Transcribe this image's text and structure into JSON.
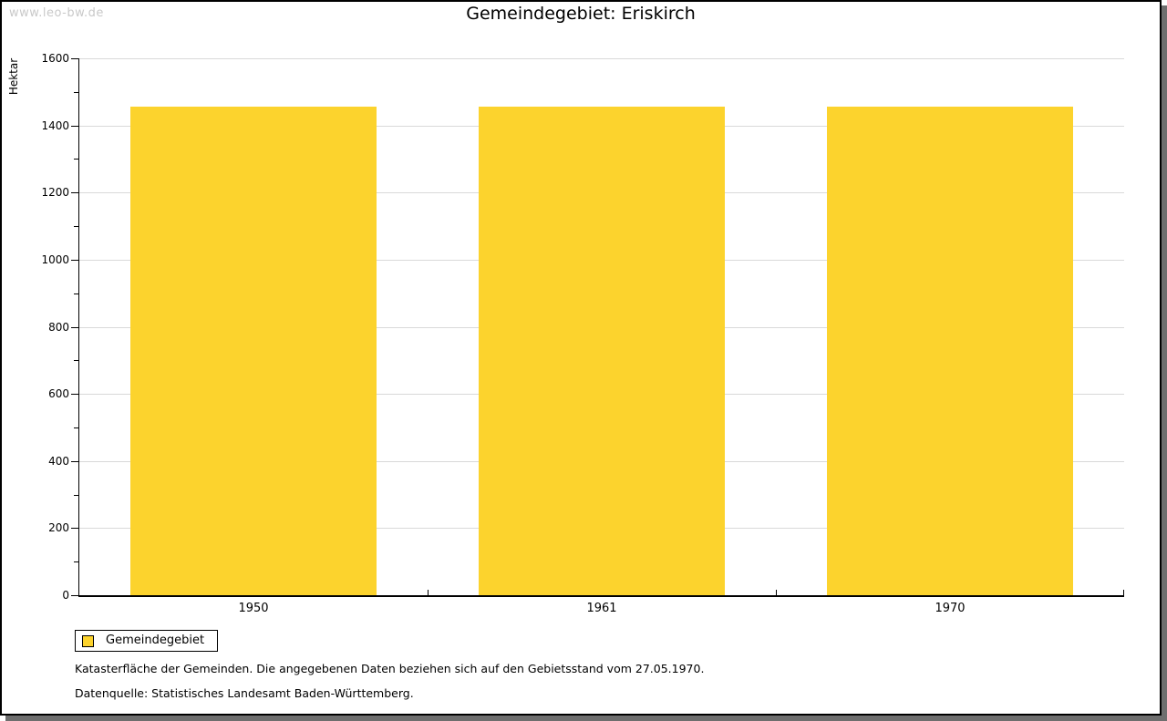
{
  "watermark": "www.leo-bw.de",
  "title": "Gemeindegebiet: Eriskirch",
  "chart_data": {
    "type": "bar",
    "title": "Gemeindegebiet: Eriskirch",
    "categories": [
      "1950",
      "1961",
      "1970"
    ],
    "series": [
      {
        "name": "Gemeindegebiet",
        "values": [
          1455,
          1455,
          1455
        ]
      }
    ],
    "xlabel": "",
    "ylabel": "Hektar",
    "ylim": [
      0,
      1600
    ],
    "ytick_step": 200,
    "ytick_minor_step": 100,
    "ytick_labels": [
      "0",
      "200",
      "400",
      "600",
      "800",
      "1000",
      "1200",
      "1400",
      "1600"
    ],
    "grid": true,
    "legend_position": "bottom-left",
    "unit": "Hektar"
  },
  "legend": {
    "label": "Gemeindegebiet"
  },
  "colors": {
    "bar": "#fcd32d",
    "grid": "#d9d9d9",
    "axis": "#000000",
    "text": "#000000",
    "watermark": "#c9c9c9",
    "frame_shadow": "#6e6e6e"
  },
  "footnotes": [
    "Katasterfläche der Gemeinden. Die angegebenen Daten beziehen sich auf den Gebietsstand vom 27.05.1970.",
    "Datenquelle: Statistisches Landesamt Baden-Württemberg."
  ]
}
